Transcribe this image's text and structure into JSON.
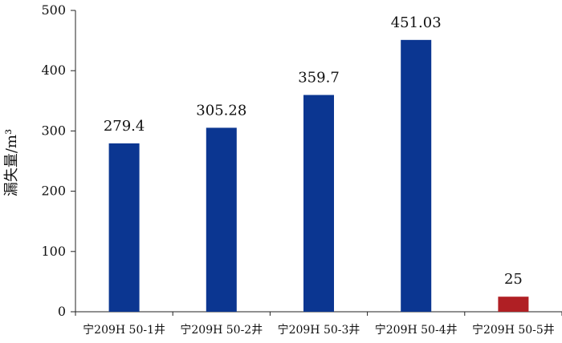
{
  "chart_data": {
    "type": "bar",
    "title": "",
    "xlabel": "",
    "ylabel": "漏失量/m³",
    "ylim": [
      0,
      500
    ],
    "yticks": [
      0,
      100,
      200,
      300,
      400,
      500
    ],
    "grid": false,
    "legend": "none",
    "categories": [
      "宁209H 50-1井",
      "宁209H 50-2井",
      "宁209H 50-3井",
      "宁209H 50-4井",
      "宁209H 50-5井"
    ],
    "values": [
      279.4,
      305.28,
      359.7,
      451.03,
      25
    ],
    "value_labels": [
      "279.4",
      "305.28",
      "359.7",
      "451.03",
      "25"
    ],
    "bar_colors": [
      "#0b3691",
      "#0b3691",
      "#0b3691",
      "#0b3691",
      "#b01f24"
    ]
  }
}
